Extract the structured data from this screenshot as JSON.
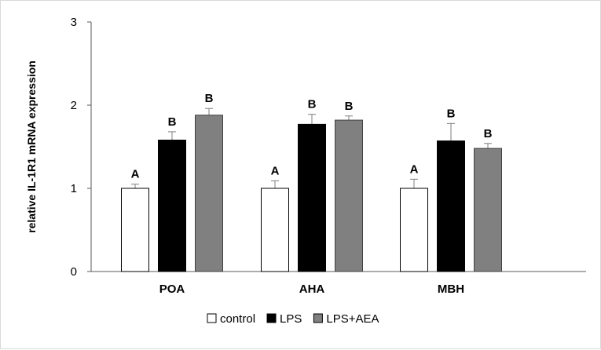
{
  "chart_data": {
    "type": "bar",
    "title": "",
    "xlabel": "",
    "ylabel": "relative IL-1R1 mRNA expression",
    "ylim": [
      0,
      3
    ],
    "yticks": [
      0,
      1,
      2,
      3
    ],
    "grid": false,
    "legend_position": "bottom",
    "categories": [
      "POA",
      "AHA",
      "MBH"
    ],
    "series": [
      {
        "name": "control",
        "color": "#ffffff",
        "values": [
          1.0,
          1.0,
          1.0
        ],
        "errors": [
          0.05,
          0.09,
          0.11
        ],
        "labels": [
          "A",
          "A",
          "A"
        ]
      },
      {
        "name": "LPS",
        "color": "#000000",
        "values": [
          1.58,
          1.77,
          1.57
        ],
        "errors": [
          0.1,
          0.12,
          0.21
        ],
        "labels": [
          "B",
          "B",
          "B"
        ]
      },
      {
        "name": "LPS+AEA",
        "color": "#808080",
        "values": [
          1.88,
          1.82,
          1.48
        ],
        "errors": [
          0.08,
          0.05,
          0.06
        ],
        "labels": [
          "B",
          "B",
          "B"
        ]
      }
    ]
  }
}
